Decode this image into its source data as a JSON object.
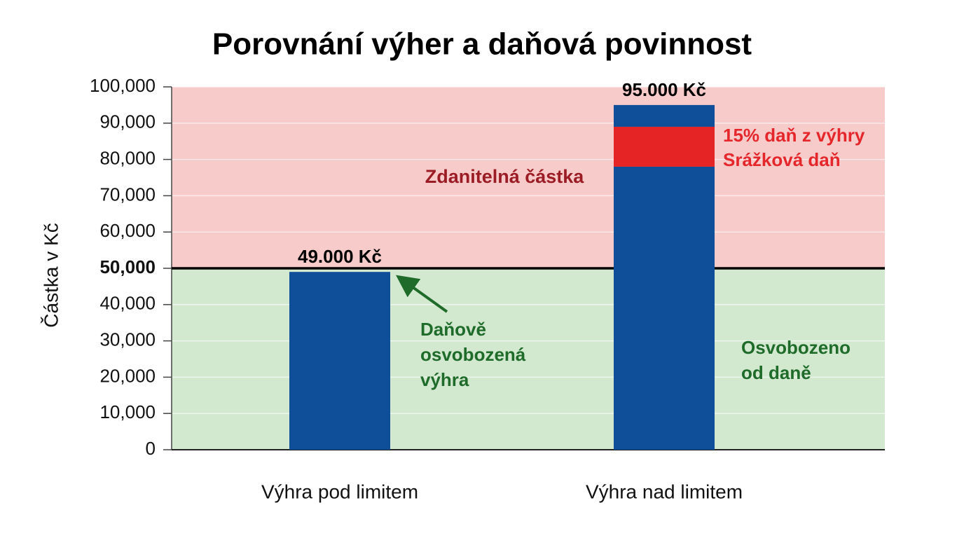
{
  "chart_data": {
    "type": "stacked-bar",
    "title": "Porovnání výher a daňová povinnost",
    "y_label": "Částka v Kč",
    "categories": [
      "Výhra pod limitem",
      "Výhra nad limitem"
    ],
    "series": [
      {
        "color": "#0f4f9a",
        "values": [
          49000,
          78000
        ]
      },
      {
        "color": "#e52426",
        "values": [
          null,
          11000
        ]
      },
      {
        "color": "#0f4f9a",
        "values": [
          null,
          6000
        ]
      }
    ],
    "bar_labels": [
      "49.000 Kč",
      "95.000 Kč"
    ],
    "threshold": 50000,
    "ylim": [
      0,
      100000
    ],
    "yticks": [
      0,
      {
        "value": 10000,
        "label": "10,000"
      },
      {
        "value": 20000,
        "label": "20,000"
      },
      {
        "value": 30000,
        "label": "30,000"
      },
      {
        "value": 40000,
        "label": "40,000"
      },
      {
        "value": 50000,
        "label": "50,000"
      },
      {
        "value": 60000,
        "label": "60,000"
      },
      {
        "value": 70000,
        "label": "70,000"
      },
      {
        "value": 80000,
        "label": "80,000"
      },
      {
        "value": 90000,
        "label": "90,000"
      },
      {
        "value": 100000,
        "label": "100,000"
      }
    ],
    "grid": true,
    "region_colors": {
      "above": "#f8cbcb",
      "below": "#d2e8cf"
    },
    "annotations": {
      "taxable": "Zdanitelná částka",
      "tax_rate": "15% daň z výhry",
      "tax_kind": "Srážková daň",
      "exempt_win": [
        "Daňově",
        "osvobozená",
        "výhra"
      ],
      "exempt": [
        "Osvobozeno",
        "od daně"
      ]
    }
  }
}
